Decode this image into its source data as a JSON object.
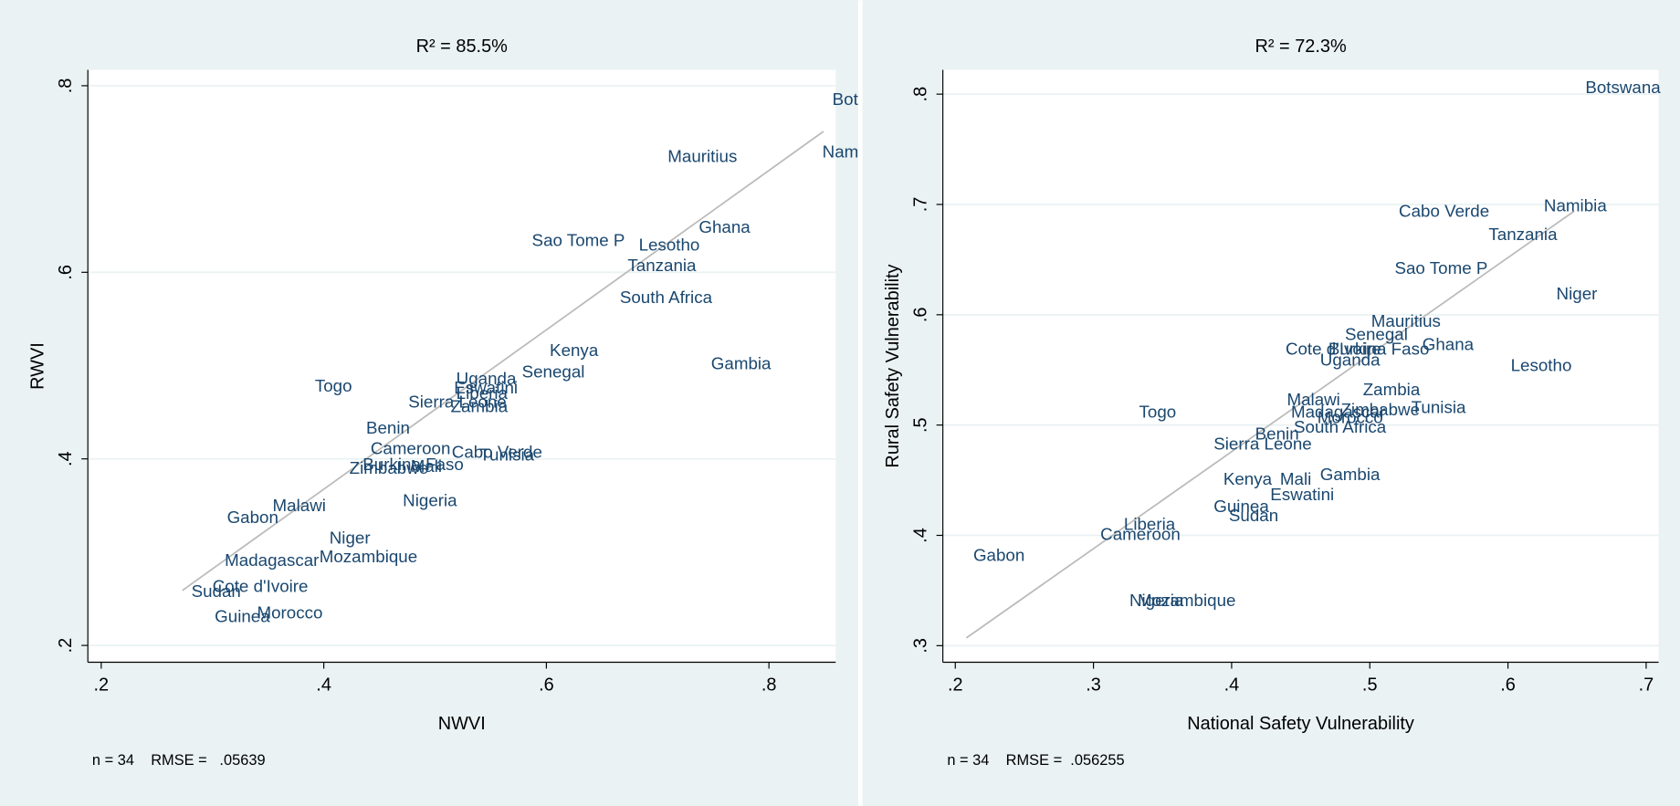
{
  "chart_data": [
    {
      "type": "scatter",
      "title": "R² = 85.5%",
      "x_label": "NWVI",
      "y_label": "RWVI",
      "note": "n = 34    RMSE =   .05639",
      "xlim": [
        0.188,
        0.86
      ],
      "ylim": [
        0.182,
        0.817
      ],
      "xticks": [
        {
          "value": 0.2,
          "label": ".2"
        },
        {
          "value": 0.4,
          "label": ".4"
        },
        {
          "value": 0.6,
          "label": ".6"
        },
        {
          "value": 0.8,
          "label": ".8"
        }
      ],
      "yticks": [
        {
          "value": 0.2,
          "label": ".2"
        },
        {
          "value": 0.4,
          "label": ".4"
        },
        {
          "value": 0.6,
          "label": ".6"
        },
        {
          "value": 0.8,
          "label": ".8"
        }
      ],
      "grid": true,
      "color": "#1a476f",
      "labels": [
        "Bot",
        "Nam",
        "Mauritius",
        "Ghana",
        "Sao Tome P",
        "Lesotho",
        "Tanzania",
        "South Africa",
        "Kenya",
        "Gambia",
        "Senegal",
        "Togo",
        "Uganda",
        "Eswatini",
        "Liberia",
        "Sierra Leone",
        "Zambia",
        "Benin",
        "Cameroon",
        "Cabo Verde",
        "Tunisia",
        "Burkina Faso",
        "Mali",
        "Zimbabwe",
        "Nigeria",
        "Malawi",
        "Gabon",
        "Niger",
        "Mozambique",
        "Madagascar",
        "Cote d'Ivoire",
        "Sudan",
        "Morocco",
        "Guinea"
      ],
      "x": [
        0.857,
        0.848,
        0.709,
        0.737,
        0.587,
        0.683,
        0.673,
        0.666,
        0.603,
        0.748,
        0.578,
        0.392,
        0.519,
        0.517,
        0.519,
        0.476,
        0.514,
        0.438,
        0.442,
        0.515,
        0.54,
        0.435,
        0.478,
        0.423,
        0.471,
        0.354,
        0.313,
        0.405,
        0.396,
        0.311,
        0.3,
        0.281,
        0.34,
        0.302
      ],
      "y": [
        0.784,
        0.728,
        0.723,
        0.647,
        0.633,
        0.628,
        0.606,
        0.572,
        0.515,
        0.501,
        0.492,
        0.477,
        0.485,
        0.475,
        0.469,
        0.46,
        0.455,
        0.432,
        0.41,
        0.406,
        0.403,
        0.393,
        0.391,
        0.389,
        0.354,
        0.349,
        0.336,
        0.314,
        0.294,
        0.29,
        0.262,
        0.257,
        0.234,
        0.23
      ],
      "fit": {
        "x": [
          0.273,
          0.849
        ],
        "y": [
          0.259,
          0.751
        ],
        "color": "#bbbbbb"
      }
    },
    {
      "type": "scatter",
      "title": "R² = 72.3%",
      "x_label": "National Safety Vulnerability",
      "y_label": "Rural Safety Vulnerability",
      "note": "n = 34    RMSE =  .056255",
      "xlim": [
        0.191,
        0.709
      ],
      "ylim": [
        0.285,
        0.822
      ],
      "xticks": [
        {
          "value": 0.2,
          "label": ".2"
        },
        {
          "value": 0.3,
          "label": ".3"
        },
        {
          "value": 0.4,
          "label": ".4"
        },
        {
          "value": 0.5,
          "label": ".5"
        },
        {
          "value": 0.6,
          "label": ".6"
        },
        {
          "value": 0.7,
          "label": ".7"
        }
      ],
      "yticks": [
        {
          "value": 0.3,
          "label": ".3"
        },
        {
          "value": 0.4,
          "label": ".4"
        },
        {
          "value": 0.5,
          "label": ".5"
        },
        {
          "value": 0.6,
          "label": ".6"
        },
        {
          "value": 0.7,
          "label": ".7"
        },
        {
          "value": 0.8,
          "label": ".8"
        }
      ],
      "grid": true,
      "color": "#1a476f",
      "labels": [
        "Botswana",
        "Cabo Verde",
        "Namibia",
        "Tanzania",
        "Sao Tome P",
        "Niger",
        "Mauritius",
        "Senegal",
        "Ghana",
        "Cote d'Ivoire",
        "Burkina Faso",
        "Uganda",
        "Lesotho",
        "Zambia",
        "Malawi",
        "Tunisia",
        "Madagascar",
        "Zimbabwe",
        "Morocco",
        "South Africa",
        "Togo",
        "Benin",
        "Sierra Leone",
        "Kenya",
        "Mali",
        "Gambia",
        "Eswatini",
        "Guinea",
        "Sudan",
        "Liberia",
        "Cameroon",
        "Gabon",
        "Nigeria",
        "Mozambique"
      ],
      "x": [
        0.656,
        0.521,
        0.626,
        0.586,
        0.518,
        0.635,
        0.501,
        0.482,
        0.538,
        0.439,
        0.47,
        0.464,
        0.602,
        0.495,
        0.44,
        0.53,
        0.443,
        0.479,
        0.462,
        0.445,
        0.333,
        0.417,
        0.387,
        0.394,
        0.435,
        0.464,
        0.428,
        0.387,
        0.398,
        0.322,
        0.305,
        0.213,
        0.326,
        0.332
      ],
      "y": [
        0.805,
        0.693,
        0.698,
        0.672,
        0.641,
        0.618,
        0.593,
        0.581,
        0.572,
        0.568,
        0.568,
        0.558,
        0.553,
        0.531,
        0.522,
        0.515,
        0.511,
        0.513,
        0.506,
        0.497,
        0.511,
        0.491,
        0.482,
        0.45,
        0.45,
        0.454,
        0.436,
        0.425,
        0.417,
        0.409,
        0.4,
        0.381,
        0.34,
        0.34
      ],
      "fit": {
        "x": [
          0.208,
          0.648
        ],
        "y": [
          0.307,
          0.694
        ],
        "color": "#bbbbbb"
      }
    }
  ]
}
